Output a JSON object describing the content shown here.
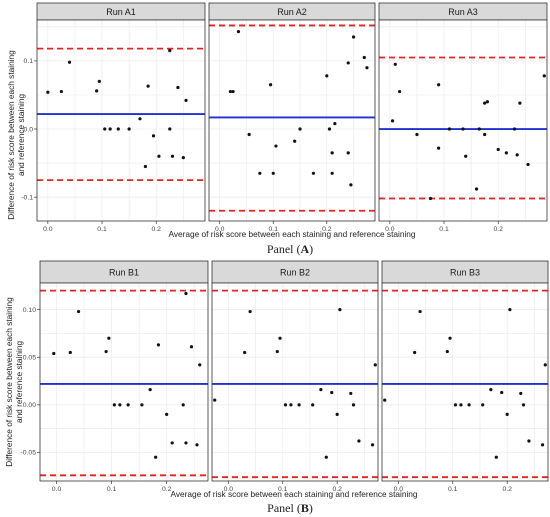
{
  "figure": {
    "panels": [
      {
        "caption_prefix": "Panel (",
        "caption_letter": "A",
        "caption_suffix": ")",
        "ylabel": [
          "Difference of risk score between each staining",
          "and reference staining"
        ],
        "xlabel": "Average of risk score between each staining and reference staining"
      },
      {
        "caption_prefix": "Panel (",
        "caption_letter": "B",
        "caption_suffix": ")",
        "ylabel": [
          "Difference of risk score between each staining",
          "and reference staining"
        ],
        "xlabel": "Average of risk score between each staining and reference staining"
      }
    ]
  },
  "colors": {
    "mean_line": "#1f2fd6",
    "limit_line": "#e8231f",
    "point": "#111111",
    "strip_bg": "#d9d9d9",
    "grid": "#ebebeb"
  },
  "chart_data": [
    {
      "type": "scatter",
      "title": "Run A1",
      "panel": "A",
      "xlim": [
        -0.02,
        0.29
      ],
      "ylim": [
        -0.135,
        0.16
      ],
      "xticks": [
        0.0,
        0.1,
        0.2
      ],
      "xtick_labels": [
        "0.0",
        "0.1",
        "0.2"
      ],
      "yticks": [
        -0.1,
        0.0,
        0.1
      ],
      "ytick_labels": [
        "-0.1",
        "0.0",
        "0.1"
      ],
      "mean": 0.022,
      "upper_limit": 0.118,
      "lower_limit": -0.075,
      "points": [
        [
          0.0,
          0.054
        ],
        [
          0.025,
          0.055
        ],
        [
          0.04,
          0.098
        ],
        [
          0.09,
          0.056
        ],
        [
          0.095,
          0.07
        ],
        [
          0.105,
          0.0
        ],
        [
          0.115,
          0.0
        ],
        [
          0.13,
          0.0
        ],
        [
          0.15,
          0.0
        ],
        [
          0.17,
          0.015
        ],
        [
          0.18,
          -0.055
        ],
        [
          0.185,
          0.063
        ],
        [
          0.195,
          -0.01
        ],
        [
          0.205,
          -0.04
        ],
        [
          0.225,
          0.0
        ],
        [
          0.225,
          0.115
        ],
        [
          0.23,
          -0.04
        ],
        [
          0.24,
          0.061
        ],
        [
          0.25,
          -0.042
        ],
        [
          0.255,
          0.042
        ]
      ]
    },
    {
      "type": "scatter",
      "title": "Run A2",
      "panel": "A",
      "xlim": [
        -0.02,
        0.29
      ],
      "ylim": [
        -0.135,
        0.16
      ],
      "xticks": [
        0.0,
        0.1,
        0.2
      ],
      "xtick_labels": [
        "0.0",
        "0.1",
        "0.2"
      ],
      "yticks": [
        -0.1,
        0.0,
        0.1
      ],
      "ytick_labels": [
        "-0.1",
        "0.0",
        "0.1"
      ],
      "mean": 0.017,
      "upper_limit": 0.152,
      "lower_limit": -0.12,
      "points": [
        [
          0.02,
          0.055
        ],
        [
          0.025,
          0.055
        ],
        [
          0.035,
          0.143
        ],
        [
          0.055,
          -0.008
        ],
        [
          0.075,
          -0.065
        ],
        [
          0.095,
          0.065
        ],
        [
          0.1,
          -0.065
        ],
        [
          0.105,
          -0.025
        ],
        [
          0.14,
          -0.018
        ],
        [
          0.15,
          0.0
        ],
        [
          0.175,
          -0.065
        ],
        [
          0.2,
          0.078
        ],
        [
          0.205,
          0.0
        ],
        [
          0.21,
          -0.035
        ],
        [
          0.21,
          -0.065
        ],
        [
          0.215,
          0.008
        ],
        [
          0.24,
          0.097
        ],
        [
          0.24,
          -0.035
        ],
        [
          0.245,
          -0.082
        ],
        [
          0.25,
          0.135
        ],
        [
          0.27,
          0.105
        ],
        [
          0.275,
          0.09
        ]
      ]
    },
    {
      "type": "scatter",
      "title": "Run A3",
      "panel": "A",
      "xlim": [
        -0.02,
        0.29
      ],
      "ylim": [
        -0.135,
        0.16
      ],
      "xticks": [
        0.0,
        0.1,
        0.2
      ],
      "xtick_labels": [
        "0.0",
        "0.1",
        "0.2"
      ],
      "yticks": [
        -0.1,
        0.0,
        0.1
      ],
      "ytick_labels": [
        "-0.1",
        "0.0",
        "0.1"
      ],
      "mean": 0.0,
      "upper_limit": 0.105,
      "lower_limit": -0.102,
      "points": [
        [
          0.005,
          0.012
        ],
        [
          0.01,
          0.095
        ],
        [
          0.018,
          0.055
        ],
        [
          0.05,
          -0.008
        ],
        [
          0.075,
          -0.102
        ],
        [
          0.09,
          0.065
        ],
        [
          0.09,
          -0.028
        ],
        [
          0.11,
          0.0
        ],
        [
          0.135,
          0.0
        ],
        [
          0.14,
          -0.04
        ],
        [
          0.16,
          -0.088
        ],
        [
          0.165,
          0.0
        ],
        [
          0.175,
          -0.008
        ],
        [
          0.175,
          0.038
        ],
        [
          0.18,
          0.04
        ],
        [
          0.2,
          -0.03
        ],
        [
          0.215,
          -0.035
        ],
        [
          0.23,
          0.0
        ],
        [
          0.235,
          -0.038
        ],
        [
          0.24,
          0.038
        ],
        [
          0.255,
          -0.052
        ],
        [
          0.285,
          0.078
        ]
      ]
    },
    {
      "type": "scatter",
      "title": "Run B1",
      "panel": "B",
      "xlim": [
        -0.03,
        0.275
      ],
      "ylim": [
        -0.08,
        0.128
      ],
      "xticks": [
        0.0,
        0.1,
        0.2
      ],
      "xtick_labels": [
        "0.0",
        "0.1",
        "0.2"
      ],
      "yticks": [
        -0.05,
        0.0,
        0.05,
        0.1
      ],
      "ytick_labels": [
        "-0.05",
        "0.00",
        "0.05",
        "0.10"
      ],
      "mean": 0.022,
      "upper_limit": 0.12,
      "lower_limit": -0.074,
      "points": [
        [
          -0.005,
          0.054
        ],
        [
          0.025,
          0.055
        ],
        [
          0.04,
          0.098
        ],
        [
          0.09,
          0.056
        ],
        [
          0.095,
          0.07
        ],
        [
          0.105,
          0.0
        ],
        [
          0.115,
          0.0
        ],
        [
          0.13,
          0.0
        ],
        [
          0.155,
          0.0
        ],
        [
          0.17,
          0.016
        ],
        [
          0.18,
          -0.055
        ],
        [
          0.185,
          0.063
        ],
        [
          0.2,
          -0.01
        ],
        [
          0.21,
          -0.04
        ],
        [
          0.23,
          0.0
        ],
        [
          0.235,
          0.117
        ],
        [
          0.235,
          -0.04
        ],
        [
          0.245,
          0.061
        ],
        [
          0.255,
          -0.042
        ],
        [
          0.26,
          0.042
        ]
      ]
    },
    {
      "type": "scatter",
      "title": "Run B2",
      "panel": "B",
      "xlim": [
        -0.03,
        0.275
      ],
      "ylim": [
        -0.08,
        0.128
      ],
      "xticks": [
        0.0,
        0.1,
        0.2
      ],
      "xtick_labels": [
        "0.0",
        "0.1",
        "0.2"
      ],
      "yticks": [
        -0.05,
        0.0,
        0.05,
        0.1
      ],
      "ytick_labels": [
        "-0.05",
        "0.00",
        "0.05",
        "0.10"
      ],
      "mean": 0.022,
      "upper_limit": 0.12,
      "lower_limit": -0.076,
      "points": [
        [
          -0.025,
          0.005
        ],
        [
          0.03,
          0.055
        ],
        [
          0.04,
          0.098
        ],
        [
          0.09,
          0.056
        ],
        [
          0.095,
          0.07
        ],
        [
          0.105,
          0.0
        ],
        [
          0.115,
          0.0
        ],
        [
          0.13,
          0.0
        ],
        [
          0.155,
          0.0
        ],
        [
          0.17,
          0.016
        ],
        [
          0.18,
          -0.055
        ],
        [
          0.19,
          0.013
        ],
        [
          0.2,
          -0.01
        ],
        [
          0.205,
          0.1
        ],
        [
          0.225,
          0.012
        ],
        [
          0.23,
          0.0
        ],
        [
          0.24,
          -0.038
        ],
        [
          0.245,
          0.133
        ],
        [
          0.265,
          -0.042
        ],
        [
          0.27,
          0.042
        ]
      ]
    },
    {
      "type": "scatter",
      "title": "Run B3",
      "panel": "B",
      "xlim": [
        -0.03,
        0.275
      ],
      "ylim": [
        -0.08,
        0.128
      ],
      "xticks": [
        0.0,
        0.1,
        0.2
      ],
      "xtick_labels": [
        "0.0",
        "0.1",
        "0.2"
      ],
      "yticks": [
        -0.05,
        0.0,
        0.05,
        0.1
      ],
      "ytick_labels": [
        "-0.05",
        "0.00",
        "0.05",
        "0.10"
      ],
      "mean": 0.022,
      "upper_limit": 0.12,
      "lower_limit": -0.076,
      "points": [
        [
          -0.025,
          0.005
        ],
        [
          0.03,
          0.055
        ],
        [
          0.04,
          0.098
        ],
        [
          0.09,
          0.056
        ],
        [
          0.095,
          0.07
        ],
        [
          0.105,
          0.0
        ],
        [
          0.115,
          0.0
        ],
        [
          0.13,
          0.0
        ],
        [
          0.155,
          0.0
        ],
        [
          0.17,
          0.016
        ],
        [
          0.18,
          -0.055
        ],
        [
          0.19,
          0.013
        ],
        [
          0.2,
          -0.01
        ],
        [
          0.205,
          0.1
        ],
        [
          0.225,
          0.012
        ],
        [
          0.23,
          0.0
        ],
        [
          0.24,
          -0.038
        ],
        [
          0.245,
          0.133
        ],
        [
          0.265,
          -0.042
        ],
        [
          0.27,
          0.042
        ]
      ]
    }
  ]
}
